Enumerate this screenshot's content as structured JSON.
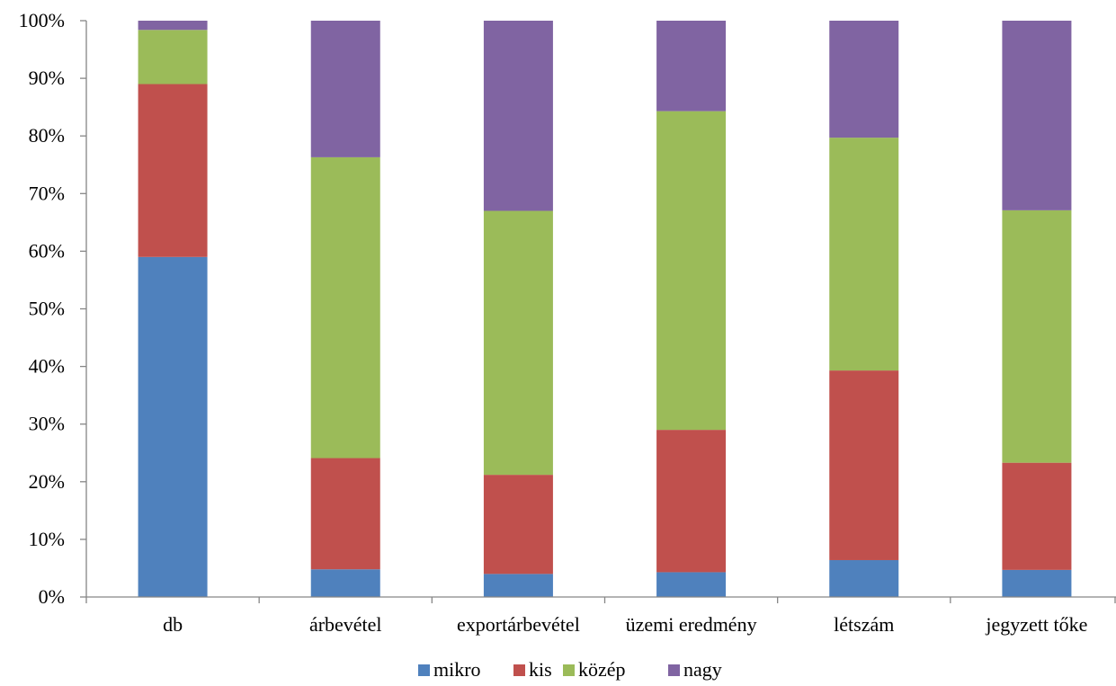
{
  "chart_data": {
    "type": "bar",
    "stacked": true,
    "percent": true,
    "categories": [
      "db",
      "árbevétel",
      "exportárbevétel",
      "üzemi eredmény",
      "létszám",
      "jegyzett tőke"
    ],
    "series": [
      {
        "name": "mikro",
        "color": "#4F81BD",
        "values": [
          59.0,
          4.8,
          4.0,
          4.3,
          6.4,
          4.7
        ]
      },
      {
        "name": "kis",
        "color": "#C0504D",
        "values": [
          30.0,
          19.3,
          17.2,
          24.7,
          32.9,
          18.6
        ]
      },
      {
        "name": "közép",
        "color": "#9BBB59",
        "values": [
          9.4,
          52.2,
          45.8,
          55.3,
          40.4,
          43.8
        ]
      },
      {
        "name": "nagy",
        "color": "#8064A2",
        "values": [
          1.6,
          23.7,
          33.0,
          15.7,
          20.3,
          32.9
        ]
      }
    ],
    "y_ticks": [
      "0%",
      "10%",
      "20%",
      "30%",
      "40%",
      "50%",
      "60%",
      "70%",
      "80%",
      "90%",
      "100%"
    ],
    "ylim": [
      0,
      100
    ],
    "grid": false,
    "legend_position": "bottom"
  }
}
